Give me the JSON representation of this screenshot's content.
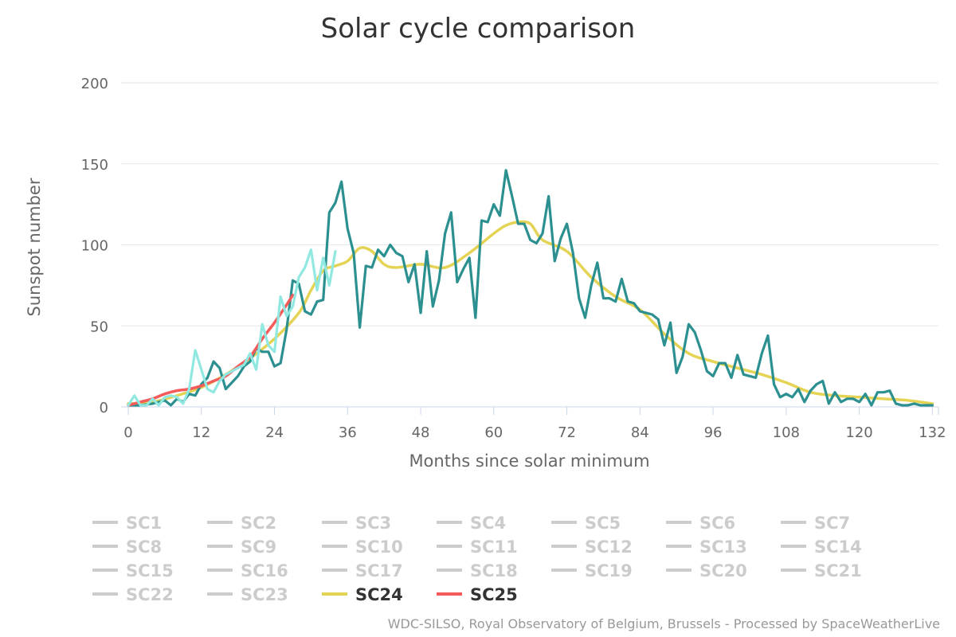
{
  "chart_data": {
    "type": "line",
    "title": "Solar cycle comparison",
    "xlabel": "Months since solar minimum",
    "ylabel": "Sunspot number",
    "xlim": [
      0,
      133
    ],
    "ylim": [
      0,
      200
    ],
    "x_ticks": [
      0,
      12,
      24,
      36,
      48,
      60,
      72,
      84,
      96,
      108,
      120,
      132
    ],
    "y_ticks": [
      0,
      50,
      100,
      150,
      200
    ],
    "grid": "horizontal",
    "legend_position": "bottom",
    "series": [
      {
        "name": "SC24",
        "color": "#e4d354",
        "visible": true,
        "smoothed": true,
        "points": [
          [
            0,
            2
          ],
          [
            4,
            3
          ],
          [
            8,
            7
          ],
          [
            12,
            12
          ],
          [
            16,
            20
          ],
          [
            20,
            30
          ],
          [
            24,
            42
          ],
          [
            28,
            58
          ],
          [
            30,
            72
          ],
          [
            32,
            84
          ],
          [
            34,
            87
          ],
          [
            36,
            90
          ],
          [
            38,
            98
          ],
          [
            40,
            96
          ],
          [
            42,
            88
          ],
          [
            44,
            86
          ],
          [
            48,
            88
          ],
          [
            52,
            86
          ],
          [
            56,
            95
          ],
          [
            60,
            107
          ],
          [
            62,
            112
          ],
          [
            64,
            114
          ],
          [
            66,
            113
          ],
          [
            68,
            103
          ],
          [
            72,
            96
          ],
          [
            76,
            80
          ],
          [
            80,
            68
          ],
          [
            84,
            60
          ],
          [
            88,
            45
          ],
          [
            92,
            33
          ],
          [
            96,
            28
          ],
          [
            100,
            24
          ],
          [
            104,
            20
          ],
          [
            108,
            15
          ],
          [
            112,
            9
          ],
          [
            116,
            7
          ],
          [
            120,
            6
          ],
          [
            124,
            5
          ],
          [
            128,
            4
          ],
          [
            132,
            2
          ]
        ]
      },
      {
        "name": "SC24",
        "color": "#2b908f",
        "visible": true,
        "smoothed": false,
        "points": [
          [
            0,
            1
          ],
          [
            2,
            1
          ],
          [
            4,
            2
          ],
          [
            6,
            4
          ],
          [
            7,
            1
          ],
          [
            8,
            5
          ],
          [
            9,
            3
          ],
          [
            10,
            8
          ],
          [
            11,
            7
          ],
          [
            12,
            14
          ],
          [
            13,
            18
          ],
          [
            14,
            28
          ],
          [
            15,
            24
          ],
          [
            16,
            11
          ],
          [
            17,
            15
          ],
          [
            18,
            19
          ],
          [
            19,
            25
          ],
          [
            20,
            28
          ],
          [
            21,
            36
          ],
          [
            22,
            34
          ],
          [
            23,
            34
          ],
          [
            24,
            25
          ],
          [
            25,
            27
          ],
          [
            26,
            48
          ],
          [
            27,
            78
          ],
          [
            28,
            76
          ],
          [
            29,
            59
          ],
          [
            30,
            57
          ],
          [
            31,
            65
          ],
          [
            32,
            66
          ],
          [
            33,
            120
          ],
          [
            34,
            126
          ],
          [
            35,
            139
          ],
          [
            36,
            110
          ],
          [
            37,
            95
          ],
          [
            38,
            49
          ],
          [
            39,
            87
          ],
          [
            40,
            86
          ],
          [
            41,
            97
          ],
          [
            42,
            93
          ],
          [
            43,
            100
          ],
          [
            44,
            95
          ],
          [
            45,
            93
          ],
          [
            46,
            77
          ],
          [
            47,
            88
          ],
          [
            48,
            58
          ],
          [
            49,
            96
          ],
          [
            50,
            62
          ],
          [
            51,
            78
          ],
          [
            52,
            107
          ],
          [
            53,
            120
          ],
          [
            54,
            77
          ],
          [
            55,
            85
          ],
          [
            56,
            92
          ],
          [
            57,
            55
          ],
          [
            58,
            115
          ],
          [
            59,
            114
          ],
          [
            60,
            125
          ],
          [
            61,
            118
          ],
          [
            62,
            146
          ],
          [
            63,
            130
          ],
          [
            64,
            113
          ],
          [
            65,
            113
          ],
          [
            66,
            103
          ],
          [
            67,
            101
          ],
          [
            68,
            107
          ],
          [
            69,
            130
          ],
          [
            70,
            90
          ],
          [
            71,
            104
          ],
          [
            72,
            113
          ],
          [
            73,
            95
          ],
          [
            74,
            67
          ],
          [
            75,
            55
          ],
          [
            76,
            75
          ],
          [
            77,
            89
          ],
          [
            78,
            67
          ],
          [
            79,
            67
          ],
          [
            80,
            65
          ],
          [
            81,
            79
          ],
          [
            82,
            65
          ],
          [
            83,
            64
          ],
          [
            84,
            59
          ],
          [
            85,
            58
          ],
          [
            86,
            57
          ],
          [
            87,
            54
          ],
          [
            88,
            38
          ],
          [
            89,
            52
          ],
          [
            90,
            21
          ],
          [
            91,
            31
          ],
          [
            92,
            51
          ],
          [
            93,
            46
          ],
          [
            94,
            35
          ],
          [
            95,
            22
          ],
          [
            96,
            19
          ],
          [
            97,
            27
          ],
          [
            98,
            27
          ],
          [
            99,
            18
          ],
          [
            100,
            32
          ],
          [
            101,
            20
          ],
          [
            102,
            19
          ],
          [
            103,
            18
          ],
          [
            104,
            33
          ],
          [
            105,
            44
          ],
          [
            106,
            14
          ],
          [
            107,
            6
          ],
          [
            108,
            8
          ],
          [
            109,
            6
          ],
          [
            110,
            11
          ],
          [
            111,
            3
          ],
          [
            112,
            10
          ],
          [
            113,
            14
          ],
          [
            114,
            16
          ],
          [
            115,
            2
          ],
          [
            116,
            9
          ],
          [
            117,
            3
          ],
          [
            118,
            5
          ],
          [
            119,
            5
          ],
          [
            120,
            3
          ],
          [
            121,
            8
          ],
          [
            122,
            1
          ],
          [
            123,
            9
          ],
          [
            124,
            9
          ],
          [
            125,
            10
          ],
          [
            126,
            2
          ],
          [
            127,
            1
          ],
          [
            128,
            1
          ],
          [
            129,
            2
          ],
          [
            130,
            1
          ],
          [
            131,
            1
          ],
          [
            132,
            1
          ]
        ]
      },
      {
        "name": "SC25",
        "color": "#f45b5b",
        "visible": true,
        "smoothed": true,
        "points": [
          [
            0,
            1
          ],
          [
            2,
            3
          ],
          [
            4,
            5
          ],
          [
            6,
            8
          ],
          [
            8,
            10
          ],
          [
            10,
            11
          ],
          [
            12,
            13
          ],
          [
            14,
            16
          ],
          [
            16,
            19
          ],
          [
            18,
            25
          ],
          [
            20,
            31
          ],
          [
            22,
            42
          ],
          [
            24,
            52
          ],
          [
            26,
            63
          ],
          [
            27,
            69
          ]
        ]
      },
      {
        "name": "SC25",
        "color": "#91e8e1",
        "visible": true,
        "smoothed": false,
        "points": [
          [
            0,
            1
          ],
          [
            1,
            7
          ],
          [
            2,
            1
          ],
          [
            3,
            1
          ],
          [
            4,
            5
          ],
          [
            5,
            1
          ],
          [
            6,
            6
          ],
          [
            7,
            7
          ],
          [
            8,
            6
          ],
          [
            9,
            2
          ],
          [
            10,
            11
          ],
          [
            11,
            35
          ],
          [
            12,
            23
          ],
          [
            13,
            11
          ],
          [
            14,
            9
          ],
          [
            15,
            16
          ],
          [
            16,
            20
          ],
          [
            17,
            22
          ],
          [
            18,
            24
          ],
          [
            19,
            26
          ],
          [
            20,
            33
          ],
          [
            21,
            23
          ],
          [
            22,
            51
          ],
          [
            23,
            38
          ],
          [
            24,
            34
          ],
          [
            25,
            68
          ],
          [
            26,
            56
          ],
          [
            27,
            62
          ],
          [
            28,
            80
          ],
          [
            29,
            86
          ],
          [
            30,
            97
          ],
          [
            31,
            72
          ],
          [
            32,
            92
          ],
          [
            33,
            75
          ],
          [
            34,
            96
          ]
        ]
      }
    ]
  },
  "legend": {
    "items": [
      {
        "label": "SC1",
        "color": "#cccccc",
        "active": false
      },
      {
        "label": "SC2",
        "color": "#cccccc",
        "active": false
      },
      {
        "label": "SC3",
        "color": "#cccccc",
        "active": false
      },
      {
        "label": "SC4",
        "color": "#cccccc",
        "active": false
      },
      {
        "label": "SC5",
        "color": "#cccccc",
        "active": false
      },
      {
        "label": "SC6",
        "color": "#cccccc",
        "active": false
      },
      {
        "label": "SC7",
        "color": "#cccccc",
        "active": false
      },
      {
        "label": "SC8",
        "color": "#cccccc",
        "active": false
      },
      {
        "label": "SC9",
        "color": "#cccccc",
        "active": false
      },
      {
        "label": "SC10",
        "color": "#cccccc",
        "active": false
      },
      {
        "label": "SC11",
        "color": "#cccccc",
        "active": false
      },
      {
        "label": "SC12",
        "color": "#cccccc",
        "active": false
      },
      {
        "label": "SC13",
        "color": "#cccccc",
        "active": false
      },
      {
        "label": "SC14",
        "color": "#cccccc",
        "active": false
      },
      {
        "label": "SC15",
        "color": "#cccccc",
        "active": false
      },
      {
        "label": "SC16",
        "color": "#cccccc",
        "active": false
      },
      {
        "label": "SC17",
        "color": "#cccccc",
        "active": false
      },
      {
        "label": "SC18",
        "color": "#cccccc",
        "active": false
      },
      {
        "label": "SC19",
        "color": "#cccccc",
        "active": false
      },
      {
        "label": "SC20",
        "color": "#cccccc",
        "active": false
      },
      {
        "label": "SC21",
        "color": "#cccccc",
        "active": false
      },
      {
        "label": "SC22",
        "color": "#cccccc",
        "active": false
      },
      {
        "label": "SC23",
        "color": "#cccccc",
        "active": false
      },
      {
        "label": "SC24",
        "color": "#e4d354",
        "active": true
      },
      {
        "label": "SC25",
        "color": "#f45b5b",
        "active": true
      }
    ]
  },
  "credit": "WDC-SILSO, Royal Observatory of Belgium, Brussels - Processed by SpaceWeatherLive",
  "colors": {
    "grid": "#e6e6e6",
    "axis": "#ccd6eb",
    "inactive_legend": "#cccccc",
    "active_legend_text": "#333333"
  }
}
